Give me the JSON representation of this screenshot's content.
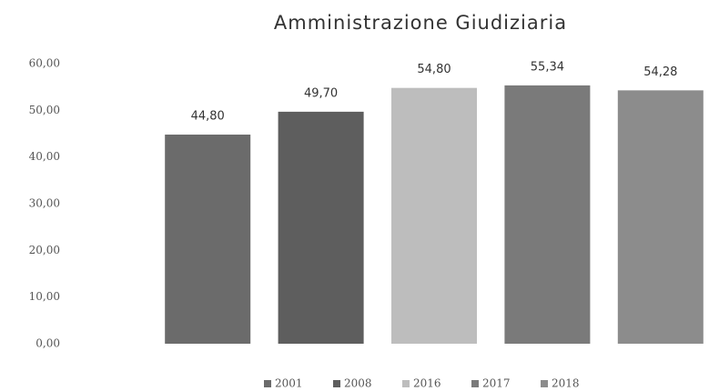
{
  "chart_data": {
    "type": "bar",
    "title": "Amministrazione Giudiziaria",
    "categories": [
      "2001",
      "2008",
      "2016",
      "2017",
      "2018"
    ],
    "values": [
      44.8,
      49.7,
      54.8,
      55.34,
      54.28
    ],
    "value_labels": [
      "44,80",
      "49,70",
      "54,80",
      "55,34",
      "54,28"
    ],
    "colors": [
      "#6b6b6b",
      "#5e5e5e",
      "#bdbdbd",
      "#7a7a7a",
      "#8c8c8c"
    ],
    "ylim": [
      0,
      60
    ],
    "yticks": [
      {
        "value": 0,
        "label": "0,00"
      },
      {
        "value": 10,
        "label": "10,00"
      },
      {
        "value": 20,
        "label": "20,00"
      },
      {
        "value": 30,
        "label": "30,00"
      },
      {
        "value": 40,
        "label": "40,00"
      },
      {
        "value": 50,
        "label": "50,00"
      },
      {
        "value": 60,
        "label": "60,00"
      }
    ],
    "grid": false,
    "legend": "bottom"
  }
}
